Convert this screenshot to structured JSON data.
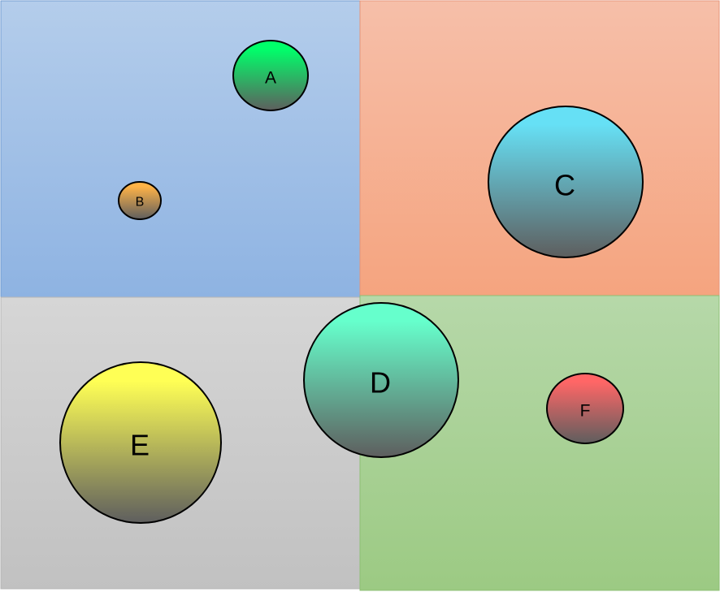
{
  "quadrants": [
    {
      "id": "top-left",
      "color_top": "#B4CDEB",
      "color_bottom": "#8EB3E2",
      "border": "#6F9BD1"
    },
    {
      "id": "top-right",
      "color_top": "#F6BFA9",
      "color_bottom": "#F5A47F",
      "border": "#E5957A"
    },
    {
      "id": "bottom-left",
      "color_top": "#D6D6D6",
      "color_bottom": "#C1C1C1",
      "border": "#B5B5B5"
    },
    {
      "id": "bottom-right",
      "color_top": "#B6D8A9",
      "color_bottom": "#9CCA83",
      "border": "#8DBF74"
    }
  ],
  "circles": [
    {
      "label": "A",
      "color": "#00FF6A"
    },
    {
      "label": "B",
      "color": "#FFB347"
    },
    {
      "label": "C",
      "color": "#66E0F5"
    },
    {
      "label": "D",
      "color": "#66FFCC"
    },
    {
      "label": "E",
      "color": "#FFFF55"
    },
    {
      "label": "F",
      "color": "#FF6666"
    }
  ],
  "circle_bottom_color": "#5E5E5E"
}
